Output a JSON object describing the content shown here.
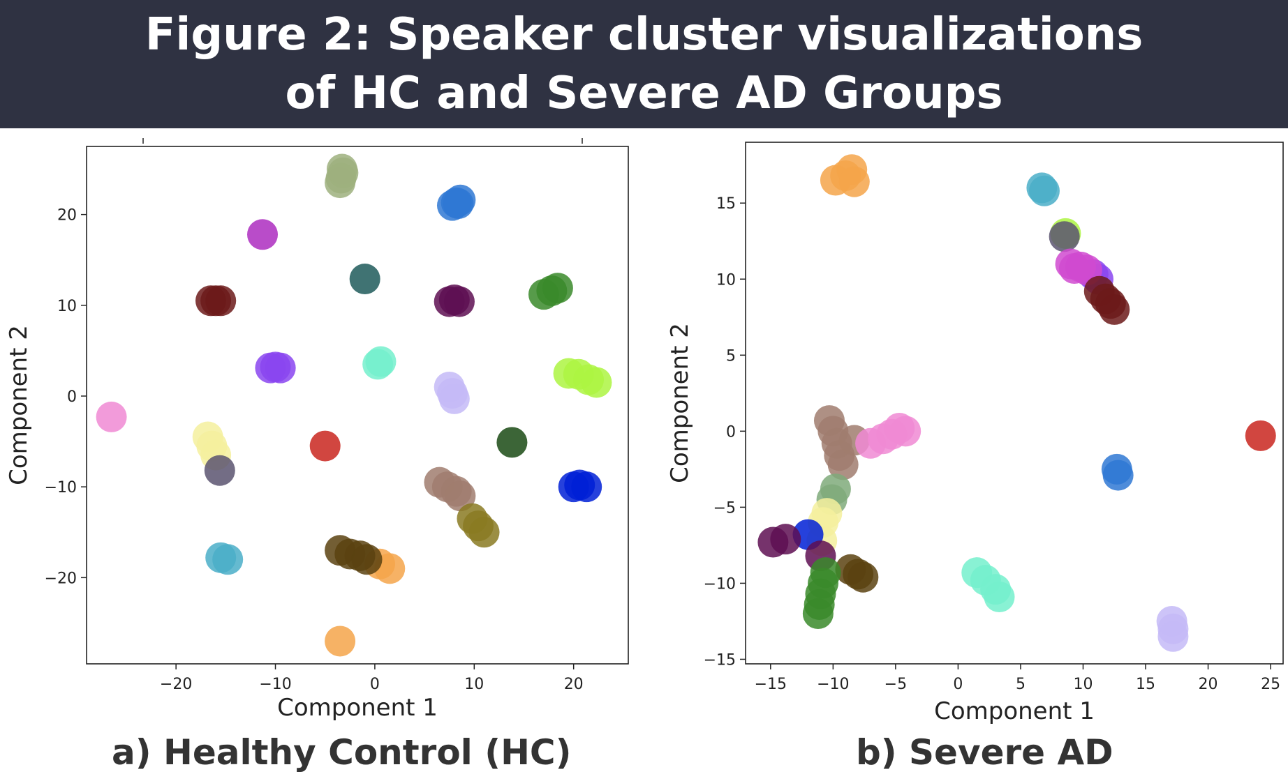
{
  "figure": {
    "title": "Figure 2: Speaker cluster visualizations of HC and Severe AD Groups",
    "caption_a": "a)   Healthy Control (HC)",
    "caption_b": "b)   Severe AD"
  },
  "colors": {
    "title_bar_bg": "#2f3242",
    "title_text": "#ffffff"
  },
  "chart_data": [
    {
      "type": "scatter",
      "title": "",
      "xlabel": "Component 1",
      "ylabel": "Component 2",
      "xlim": [
        -29,
        25.5
      ],
      "ylim": [
        -29.5,
        27.5
      ],
      "xticks": [
        -20,
        -10,
        0,
        10,
        20
      ],
      "yticks": [
        -20,
        -10,
        0,
        10,
        20
      ],
      "xtick_labels": [
        "−20",
        "−10",
        "0",
        "10",
        "20"
      ],
      "ytick_labels": [
        "−20",
        "−10",
        "0",
        "10",
        "20"
      ],
      "grid": false,
      "legend": false,
      "clusters": [
        {
          "color": "#9db07e",
          "points": [
            [
              -3.5,
              23.5
            ],
            [
              -3.4,
              24.0
            ],
            [
              -3.2,
              24.6
            ],
            [
              -3.3,
              25.0
            ]
          ]
        },
        {
          "color": "#2f78d4",
          "points": [
            [
              7.8,
              21.0
            ],
            [
              8.2,
              21.3
            ],
            [
              8.6,
              21.6
            ],
            [
              8.4,
              21.2
            ]
          ]
        },
        {
          "color": "#ad2dbf",
          "points": [
            [
              -11.3,
              17.8
            ]
          ]
        },
        {
          "color": "#1f5a5a",
          "points": [
            [
              -1.0,
              12.9
            ]
          ]
        },
        {
          "color": "#6c1a1a",
          "points": [
            [
              -16.5,
              10.5
            ],
            [
              -16.0,
              10.5
            ],
            [
              -15.5,
              10.5
            ]
          ]
        },
        {
          "color": "#5e0f52",
          "points": [
            [
              7.5,
              10.4
            ],
            [
              8.0,
              10.6
            ],
            [
              8.5,
              10.4
            ]
          ]
        },
        {
          "color": "#3a8a2a",
          "points": [
            [
              17.0,
              11.2
            ],
            [
              17.8,
              11.6
            ],
            [
              18.4,
              11.9
            ]
          ]
        },
        {
          "color": "#8a45f0",
          "points": [
            [
              -10.5,
              3.1
            ],
            [
              -10.0,
              3.2
            ],
            [
              -9.5,
              3.1
            ]
          ]
        },
        {
          "color": "#74f0cc",
          "points": [
            [
              0.3,
              3.5
            ],
            [
              0.6,
              3.8
            ]
          ]
        },
        {
          "color": "#adf542",
          "points": [
            [
              19.5,
              2.5
            ],
            [
              20.5,
              2.4
            ],
            [
              21.5,
              1.8
            ],
            [
              22.3,
              1.5
            ]
          ]
        },
        {
          "color": "#f08ad4",
          "points": [
            [
              -26.5,
              -2.3
            ]
          ]
        },
        {
          "color": "#c4baf7",
          "points": [
            [
              7.5,
              1.0
            ],
            [
              7.8,
              0.3
            ],
            [
              8.0,
              -0.3
            ]
          ]
        },
        {
          "color": "#f5f09e",
          "points": [
            [
              -16.8,
              -4.5
            ],
            [
              -16.4,
              -5.5
            ],
            [
              -16.0,
              -6.5
            ]
          ]
        },
        {
          "color": "#c9261e",
          "points": [
            [
              -5.0,
              -5.5
            ]
          ]
        },
        {
          "color": "#1a4a14",
          "points": [
            [
              13.8,
              -5.1
            ]
          ]
        },
        {
          "color": "#5a5470",
          "points": [
            [
              -15.6,
              -8.2
            ]
          ]
        },
        {
          "color": "#a07c6e",
          "points": [
            [
              6.5,
              -9.5
            ],
            [
              7.3,
              -10.0
            ],
            [
              8.2,
              -10.5
            ],
            [
              8.6,
              -11.0
            ]
          ]
        },
        {
          "color": "#0020d6",
          "points": [
            [
              20.0,
              -10.0
            ],
            [
              20.6,
              -9.8
            ],
            [
              21.3,
              -10.0
            ]
          ]
        },
        {
          "color": "#8a7a22",
          "points": [
            [
              9.8,
              -13.5
            ],
            [
              10.4,
              -14.3
            ],
            [
              11.0,
              -15.0
            ]
          ]
        },
        {
          "color": "#4aaec8",
          "points": [
            [
              -15.5,
              -17.8
            ],
            [
              -14.8,
              -18.0
            ]
          ]
        },
        {
          "color": "#f5a54a",
          "points": [
            [
              0.5,
              -18.5
            ],
            [
              1.5,
              -19.0
            ]
          ]
        },
        {
          "color": "#5a4210",
          "points": [
            [
              -3.5,
              -17.0
            ],
            [
              -2.5,
              -17.4
            ],
            [
              -1.5,
              -17.6
            ],
            [
              -0.8,
              -18.0
            ]
          ]
        },
        {
          "color": "#f5a54a",
          "points": [
            [
              -3.5,
              -27.0
            ]
          ]
        }
      ]
    },
    {
      "type": "scatter",
      "title": "",
      "xlabel": "Component 1",
      "ylabel": "Component 2",
      "xlim": [
        -17,
        26
      ],
      "ylim": [
        -15.3,
        19
      ],
      "xticks": [
        -15,
        -10,
        -5,
        0,
        5,
        10,
        15,
        20,
        25
      ],
      "yticks": [
        -15,
        -10,
        -5,
        0,
        5,
        10,
        15
      ],
      "xtick_labels": [
        "−15",
        "−10",
        "−5",
        "0",
        "5",
        "10",
        "15",
        "20",
        "25"
      ],
      "ytick_labels": [
        "−15",
        "−10",
        "−5",
        "0",
        "5",
        "10",
        "15"
      ],
      "grid": false,
      "legend": false,
      "clusters": [
        {
          "color": "#f5a54a",
          "points": [
            [
              -9.8,
              16.5
            ],
            [
              -9.0,
              16.8
            ],
            [
              -8.5,
              17.2
            ],
            [
              -8.3,
              16.4
            ]
          ]
        },
        {
          "color": "#4aaec8",
          "points": [
            [
              6.7,
              16.0
            ],
            [
              6.9,
              15.8
            ]
          ]
        },
        {
          "color": "#adf542",
          "points": [
            [
              8.6,
              13.0
            ]
          ]
        },
        {
          "color": "#5a5470",
          "points": [
            [
              8.5,
              12.8
            ]
          ]
        },
        {
          "color": "#8a45f0",
          "points": [
            [
              10.8,
              10.3
            ],
            [
              11.2,
              10.0
            ]
          ]
        },
        {
          "color": "#d04ad0",
          "points": [
            [
              9.0,
              11.0
            ],
            [
              9.3,
              10.7
            ],
            [
              9.8,
              10.8
            ],
            [
              10.3,
              10.6
            ]
          ]
        },
        {
          "color": "#6c1a1a",
          "points": [
            [
              11.3,
              9.2
            ],
            [
              11.8,
              8.7
            ],
            [
              12.2,
              8.4
            ],
            [
              12.5,
              8.0
            ]
          ]
        },
        {
          "color": "#c9261e",
          "points": [
            [
              24.2,
              -0.3
            ]
          ]
        },
        {
          "color": "#2f78d4",
          "points": [
            [
              12.7,
              -2.5
            ],
            [
              12.8,
              -2.9
            ]
          ]
        },
        {
          "color": "#a07c6e",
          "points": [
            [
              -10.3,
              0.7
            ],
            [
              -10.0,
              0.0
            ],
            [
              -9.7,
              -0.8
            ],
            [
              -9.5,
              -1.6
            ],
            [
              -9.2,
              -2.2
            ],
            [
              -8.3,
              -0.6
            ]
          ]
        },
        {
          "color": "#f08ad4",
          "points": [
            [
              -7.0,
              -0.8
            ],
            [
              -6.0,
              -0.5
            ],
            [
              -5.3,
              -0.2
            ],
            [
              -4.7,
              0.2
            ],
            [
              -4.2,
              0.0
            ]
          ]
        },
        {
          "color": "#7faa7a",
          "points": [
            [
              -9.8,
              -3.8
            ],
            [
              -10.1,
              -4.5
            ]
          ]
        },
        {
          "color": "#f5f09e",
          "points": [
            [
              -10.5,
              -5.4
            ],
            [
              -10.8,
              -6.0
            ],
            [
              -10.9,
              -7.2
            ]
          ]
        },
        {
          "color": "#0020d6",
          "points": [
            [
              -12.0,
              -6.8
            ]
          ]
        },
        {
          "color": "#5e0f52",
          "points": [
            [
              -14.8,
              -7.3
            ],
            [
              -13.8,
              -7.1
            ],
            [
              -11.0,
              -8.2
            ]
          ]
        },
        {
          "color": "#5a4210",
          "points": [
            [
              -8.6,
              -9.1
            ],
            [
              -8.0,
              -9.4
            ],
            [
              -7.6,
              -9.6
            ]
          ]
        },
        {
          "color": "#3a8a2a",
          "points": [
            [
              -10.6,
              -9.3
            ],
            [
              -10.8,
              -10.0
            ],
            [
              -11.0,
              -10.7
            ],
            [
              -11.1,
              -11.4
            ],
            [
              -11.2,
              -12.0
            ]
          ]
        },
        {
          "color": "#74f0cc",
          "points": [
            [
              1.5,
              -9.3
            ],
            [
              2.2,
              -9.8
            ],
            [
              3.0,
              -10.4
            ],
            [
              3.3,
              -10.9
            ]
          ]
        },
        {
          "color": "#c4baf7",
          "points": [
            [
              17.1,
              -12.5
            ],
            [
              17.2,
              -13.0
            ],
            [
              17.2,
              -13.5
            ]
          ]
        }
      ]
    }
  ]
}
